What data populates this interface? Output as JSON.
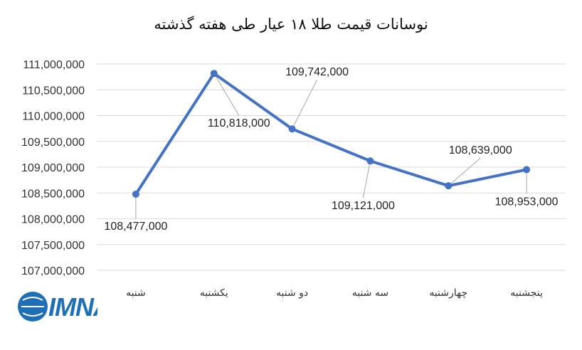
{
  "chart_data": {
    "type": "line",
    "title": "نوسانات قیمت طلا ۱۸ عیار طی هفته گذشته",
    "categories": [
      "شنبه",
      "یکشنبه",
      "دو شنبه",
      "سه شنبه",
      "چهارشنبه",
      "پنجشنبه"
    ],
    "series": [
      {
        "values": [
          108477000,
          110818000,
          109742000,
          109121000,
          108639000,
          108953000
        ],
        "color": "#4472c4"
      }
    ],
    "data_labels": [
      "108,477,000",
      "110,818,000",
      "109,742,000",
      "109,121,000",
      "108,639,000",
      "108,953,000"
    ],
    "y_ticks": [
      "107,000,000",
      "107,500,000",
      "108,000,000",
      "108,500,000",
      "109,000,000",
      "109,500,000",
      "110,000,000",
      "110,500,000",
      "111,000,000"
    ],
    "ylim": [
      107000000,
      111000000
    ],
    "grid": true,
    "legend": "none"
  },
  "logo": {
    "text": "IMNA",
    "color": "#1f6fb7"
  }
}
